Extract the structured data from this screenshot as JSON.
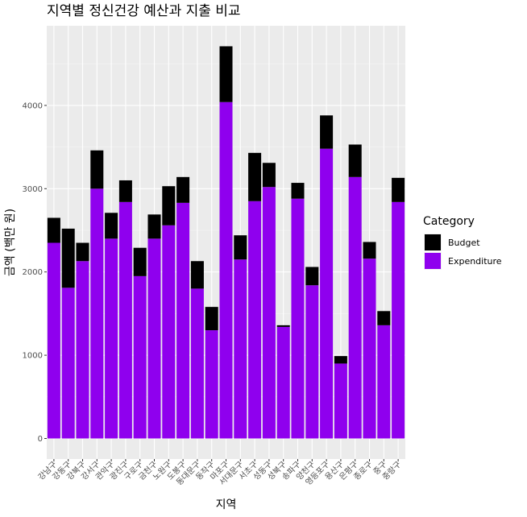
{
  "chart_data": {
    "type": "bar",
    "stacked": true,
    "title": "지역별 정신건강 예산과 지출 비교",
    "xlabel": "지역",
    "ylabel": "금액 (백만 원)",
    "ylim": [
      0,
      4950
    ],
    "yticks": [
      0,
      1000,
      2000,
      3000,
      4000
    ],
    "grid": true,
    "legend": {
      "title": "Category",
      "position": "right",
      "entries": [
        {
          "name": "Budget",
          "color": "#000000"
        },
        {
          "name": "Expenditure",
          "color": "#8f00ee"
        }
      ]
    },
    "categories": [
      "강남구",
      "강동구",
      "강북구",
      "강서구",
      "관악구",
      "광진구",
      "구로구",
      "금천구",
      "노원구",
      "도봉구",
      "동대문구",
      "동작구",
      "마포구",
      "서대문구",
      "서초구",
      "성동구",
      "성북구",
      "송파구",
      "양천구",
      "영등포구",
      "용산구",
      "은평구",
      "종로구",
      "중구",
      "중랑구"
    ],
    "series": [
      {
        "name": "Expenditure",
        "color": "#8f00ee",
        "values": [
          2350,
          1810,
          2130,
          3000,
          2400,
          2840,
          1950,
          2400,
          2560,
          2830,
          1800,
          1300,
          4040,
          2150,
          2850,
          3020,
          1340,
          2880,
          1840,
          3480,
          900,
          3140,
          2160,
          1360,
          2840
        ]
      },
      {
        "name": "Budget",
        "color": "#000000",
        "values": [
          300,
          710,
          220,
          460,
          310,
          260,
          340,
          290,
          470,
          310,
          330,
          280,
          670,
          290,
          580,
          290,
          20,
          190,
          220,
          400,
          90,
          390,
          200,
          170,
          290
        ]
      }
    ]
  }
}
